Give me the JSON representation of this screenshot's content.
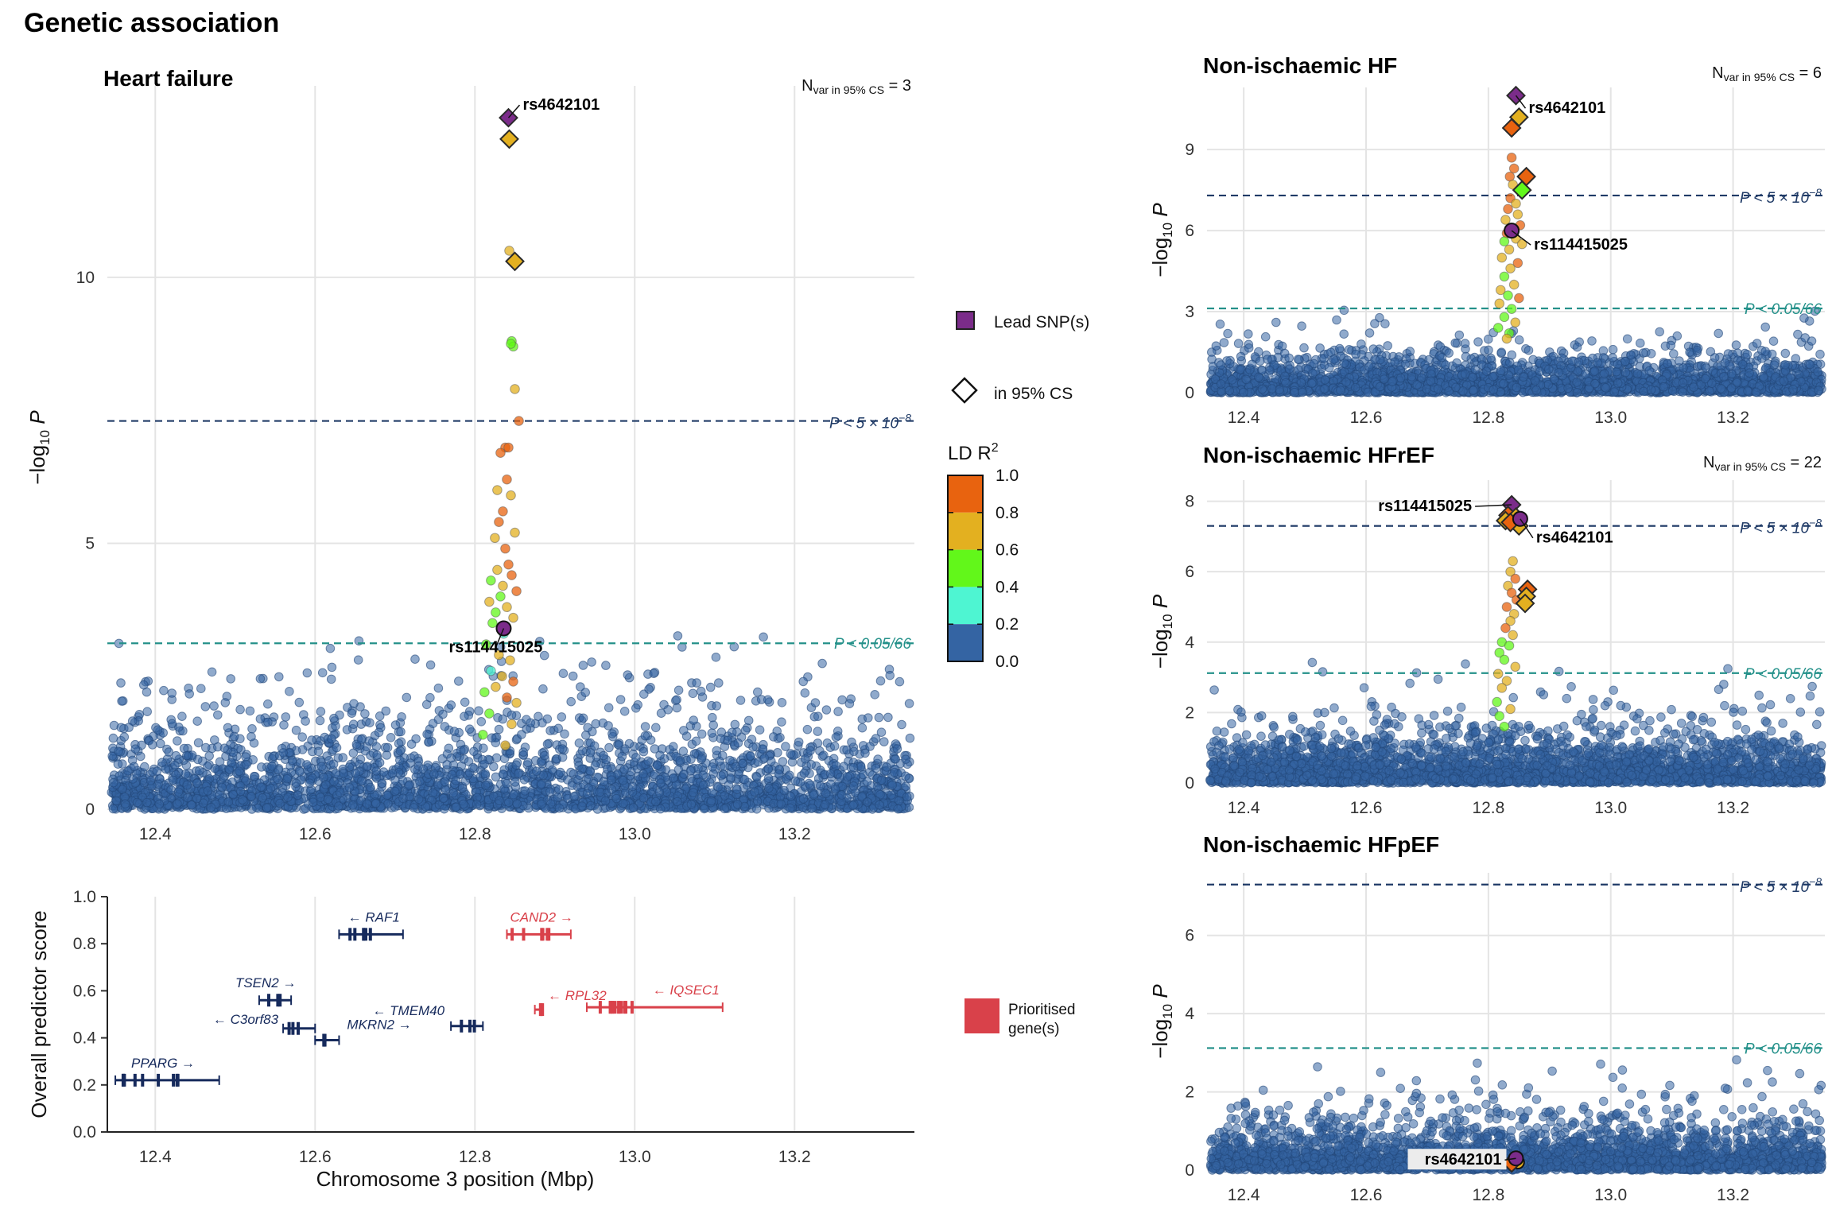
{
  "figure": {
    "title": "Genetic association"
  },
  "colors": {
    "ld_0.0": "#3464a3",
    "ld_0.2": "#4ef5d2",
    "ld_0.4": "#62f71a",
    "ld_0.6": "#e3b020",
    "ld_0.8": "#e8630f",
    "lead": "#7b2c8a",
    "gw_line": "#1f3a66",
    "bonf_line": "#24918a",
    "gene_default": "#162a5c",
    "gene_prioritised": "#d9414a"
  },
  "legend": {
    "lead_label": "Lead SNP(s)",
    "cs_label": "in 95% CS",
    "ld_title": "LD R",
    "ld_title_sup": "2",
    "ld_ticks": [
      "1.0",
      "0.8",
      "0.6",
      "0.4",
      "0.2",
      "0.0"
    ],
    "prioritised_label_1": "Prioritised",
    "prioritised_label_2": "gene(s)"
  },
  "line_labels": {
    "gw": "P < 5 × 10",
    "gw_exp": "−8",
    "bonf": "P < 0.05/66"
  },
  "chart_data": [
    {
      "panel": "Heart failure",
      "type": "scatter",
      "title": "Heart failure",
      "ylabel": "−log10 P",
      "nvar_text": "N",
      "nvar_sub": "var in 95% CS",
      "nvar_value": "= 3",
      "xlim": [
        12.34,
        13.35
      ],
      "ylim": [
        0,
        13.6
      ],
      "xticks": [
        "12.4",
        "12.6",
        "12.8",
        "13.0",
        "13.2"
      ],
      "yticks": [
        "0",
        "5",
        "10"
      ],
      "gw_threshold": 7.3,
      "bonf_threshold": 3.12,
      "highlight_points": [
        {
          "x": 12.842,
          "y": 13.0,
          "shape": "diamond",
          "ld": 1.0,
          "lead": true,
          "label": "rs4642101"
        },
        {
          "x": 12.843,
          "y": 12.6,
          "shape": "diamond",
          "ld": 0.7
        },
        {
          "x": 12.85,
          "y": 10.3,
          "shape": "diamond",
          "ld": 0.7
        },
        {
          "x": 12.836,
          "y": 3.4,
          "shape": "circle",
          "ld": 1.0,
          "lead": true,
          "label": "rs114415025"
        }
      ],
      "signal_points": [
        [
          12.843,
          10.5,
          0.6
        ],
        [
          12.846,
          8.8,
          0.4
        ],
        [
          12.848,
          8.7,
          0.4
        ],
        [
          12.845,
          8.75,
          0.4
        ],
        [
          12.85,
          7.9,
          0.6
        ],
        [
          12.855,
          7.3,
          0.8
        ],
        [
          12.838,
          6.8,
          0.8
        ],
        [
          12.832,
          6.7,
          0.8
        ],
        [
          12.842,
          6.8,
          0.8
        ],
        [
          12.84,
          6.2,
          0.8
        ],
        [
          12.828,
          6.0,
          0.6
        ],
        [
          12.845,
          5.9,
          0.6
        ],
        [
          12.835,
          5.6,
          0.8
        ],
        [
          12.83,
          5.4,
          0.8
        ],
        [
          12.85,
          5.2,
          0.6
        ],
        [
          12.825,
          5.1,
          0.6
        ],
        [
          12.838,
          4.9,
          0.8
        ],
        [
          12.842,
          4.6,
          0.8
        ],
        [
          12.828,
          4.5,
          0.6
        ],
        [
          12.846,
          4.4,
          0.8
        ],
        [
          12.82,
          4.3,
          0.4
        ],
        [
          12.835,
          4.2,
          0.6
        ],
        [
          12.852,
          4.1,
          0.8
        ],
        [
          12.832,
          4.0,
          0.4
        ],
        [
          12.818,
          3.9,
          0.6
        ],
        [
          12.84,
          3.8,
          0.6
        ],
        [
          12.826,
          3.7,
          0.4
        ],
        [
          12.848,
          3.6,
          0.6
        ],
        [
          12.822,
          3.5,
          0.4
        ],
        [
          12.836,
          3.3,
          0.2
        ],
        [
          12.814,
          3.1,
          0.4
        ],
        [
          12.83,
          2.9,
          0.6
        ],
        [
          12.844,
          2.8,
          0.6
        ],
        [
          12.82,
          2.6,
          0.2
        ],
        [
          12.834,
          2.5,
          0.6
        ],
        [
          12.848,
          2.4,
          0.8
        ],
        [
          12.826,
          2.3,
          0.6
        ],
        [
          12.812,
          2.2,
          0.4
        ],
        [
          12.84,
          2.1,
          0.8
        ],
        [
          12.852,
          2.0,
          0.6
        ],
        [
          12.818,
          1.8,
          0.4
        ],
        [
          12.846,
          1.6,
          0.6
        ],
        [
          12.81,
          1.4,
          0.4
        ],
        [
          12.838,
          1.2,
          0.6
        ]
      ]
    },
    {
      "panel": "Non-ischaemic HF",
      "type": "scatter",
      "title": "Non-ischaemic HF",
      "ylabel": "−log10 P",
      "nvar_text": "N",
      "nvar_sub": "var in 95% CS",
      "nvar_value": "= 6",
      "xlim": [
        12.34,
        13.35
      ],
      "ylim": [
        0,
        11.3
      ],
      "xticks": [
        "12.4",
        "12.6",
        "12.8",
        "13.0",
        "13.2"
      ],
      "yticks": [
        "0",
        "3",
        "6",
        "9"
      ],
      "gw_threshold": 7.3,
      "bonf_threshold": 3.12,
      "highlight_points": [
        {
          "x": 12.845,
          "y": 11.0,
          "shape": "diamond",
          "ld": 1.0,
          "lead": true,
          "label": "rs4642101"
        },
        {
          "x": 12.85,
          "y": 10.2,
          "shape": "diamond",
          "ld": 0.7
        },
        {
          "x": 12.838,
          "y": 9.8,
          "shape": "diamond",
          "ld": 0.8
        },
        {
          "x": 12.862,
          "y": 8.0,
          "shape": "diamond",
          "ld": 0.85
        },
        {
          "x": 12.855,
          "y": 7.5,
          "shape": "diamond",
          "ld": 0.4
        },
        {
          "x": 12.838,
          "y": 6.0,
          "shape": "circle",
          "ld": 1.0,
          "lead": true,
          "label": "rs114415025"
        }
      ],
      "signal_points": [
        [
          12.838,
          8.7,
          0.8
        ],
        [
          12.842,
          8.3,
          0.8
        ],
        [
          12.835,
          8.0,
          0.8
        ],
        [
          12.84,
          7.7,
          0.6
        ],
        [
          12.836,
          7.2,
          0.8
        ],
        [
          12.845,
          7.0,
          0.6
        ],
        [
          12.832,
          6.8,
          0.8
        ],
        [
          12.848,
          6.6,
          0.6
        ],
        [
          12.828,
          6.4,
          0.6
        ],
        [
          12.852,
          6.2,
          0.8
        ],
        [
          12.83,
          5.9,
          0.8
        ],
        [
          12.845,
          5.7,
          0.6
        ],
        [
          12.826,
          5.6,
          0.4
        ],
        [
          12.855,
          5.5,
          0.6
        ],
        [
          12.834,
          5.3,
          0.6
        ],
        [
          12.822,
          5.0,
          0.6
        ],
        [
          12.848,
          4.8,
          0.8
        ],
        [
          12.836,
          4.6,
          0.6
        ],
        [
          12.826,
          4.3,
          0.4
        ],
        [
          12.842,
          4.0,
          0.6
        ],
        [
          12.82,
          3.8,
          0.6
        ],
        [
          12.832,
          3.6,
          0.4
        ],
        [
          12.85,
          3.5,
          0.8
        ],
        [
          12.818,
          3.3,
          0.6
        ],
        [
          12.838,
          3.1,
          0.4
        ],
        [
          12.826,
          2.8,
          0.4
        ],
        [
          12.844,
          2.6,
          0.6
        ],
        [
          12.816,
          2.4,
          0.4
        ],
        [
          12.834,
          2.2,
          0.4
        ],
        [
          12.83,
          2.0,
          0.6
        ]
      ]
    },
    {
      "panel": "Non-ischaemic HFrEF",
      "type": "scatter",
      "title": "Non-ischaemic HFrEF",
      "ylabel": "−log10 P",
      "nvar_text": "N",
      "nvar_sub": "var in 95% CS",
      "nvar_value": "= 22",
      "xlim": [
        12.34,
        13.35
      ],
      "ylim": [
        0,
        8.6
      ],
      "xticks": [
        "12.4",
        "12.6",
        "12.8",
        "13.0",
        "13.2"
      ],
      "yticks": [
        "0",
        "2",
        "4",
        "6",
        "8"
      ],
      "gw_threshold": 7.3,
      "bonf_threshold": 3.12,
      "highlight_points": [
        {
          "x": 12.838,
          "y": 7.9,
          "shape": "diamond",
          "ld": 1.0,
          "lead": true,
          "label": "rs114415025"
        },
        {
          "x": 12.832,
          "y": 7.6,
          "shape": "diamond",
          "ld": 0.8
        },
        {
          "x": 12.845,
          "y": 7.55,
          "shape": "diamond",
          "ld": 0.7
        },
        {
          "x": 12.828,
          "y": 7.45,
          "shape": "diamond",
          "ld": 0.7
        },
        {
          "x": 12.85,
          "y": 7.3,
          "shape": "diamond",
          "ld": 0.6
        },
        {
          "x": 12.836,
          "y": 7.4,
          "shape": "diamond",
          "ld": 0.8
        },
        {
          "x": 12.864,
          "y": 5.5,
          "shape": "diamond",
          "ld": 0.85
        },
        {
          "x": 12.862,
          "y": 5.3,
          "shape": "diamond",
          "ld": 0.7
        },
        {
          "x": 12.86,
          "y": 5.1,
          "shape": "diamond",
          "ld": 0.6
        },
        {
          "x": 12.852,
          "y": 7.5,
          "shape": "circle",
          "ld": 1.0,
          "lead": true,
          "label": "rs4642101"
        }
      ],
      "signal_points": [
        [
          12.84,
          6.3,
          0.6
        ],
        [
          12.836,
          6.0,
          0.6
        ],
        [
          12.844,
          5.8,
          0.8
        ],
        [
          12.832,
          5.6,
          0.6
        ],
        [
          12.838,
          5.4,
          0.8
        ],
        [
          12.846,
          5.2,
          0.8
        ],
        [
          12.83,
          5.0,
          0.8
        ],
        [
          12.842,
          4.8,
          0.6
        ],
        [
          12.836,
          4.6,
          0.6
        ],
        [
          12.828,
          4.4,
          0.8
        ],
        [
          12.84,
          4.2,
          0.6
        ],
        [
          12.822,
          4.0,
          0.4
        ],
        [
          12.834,
          3.9,
          0.4
        ],
        [
          12.818,
          3.7,
          0.4
        ],
        [
          12.826,
          3.5,
          0.4
        ],
        [
          12.844,
          3.3,
          0.6
        ],
        [
          12.816,
          3.1,
          0.6
        ],
        [
          12.83,
          2.9,
          0.6
        ],
        [
          12.822,
          2.7,
          0.6
        ],
        [
          12.814,
          2.3,
          0.4
        ],
        [
          12.836,
          2.1,
          0.6
        ],
        [
          12.818,
          1.9,
          0.4
        ],
        [
          12.826,
          1.6,
          0.4
        ]
      ]
    },
    {
      "panel": "Non-ischaemic HFpEF",
      "type": "scatter",
      "title": "Non-ischaemic HFpEF",
      "ylabel": "−log10 P",
      "xlim": [
        12.34,
        13.35
      ],
      "ylim": [
        0,
        7.6
      ],
      "xticks": [
        "12.4",
        "12.6",
        "12.8",
        "13.0",
        "13.2"
      ],
      "yticks": [
        "0",
        "2",
        "4",
        "6"
      ],
      "gw_threshold": 7.3,
      "bonf_threshold": 3.12,
      "highlight_points": [
        {
          "x": 12.842,
          "y": 0.25,
          "shape": "circle",
          "ld": 0.8
        },
        {
          "x": 12.848,
          "y": 0.2,
          "shape": "circle",
          "ld": 0.6
        },
        {
          "x": 12.838,
          "y": 0.18,
          "shape": "diamond",
          "ld": 0.8
        },
        {
          "x": 12.845,
          "y": 0.3,
          "shape": "circle",
          "ld": 1.0,
          "lead": true,
          "label": "rs4642101"
        }
      ],
      "signal_points": []
    },
    {
      "panel": "Gene prioritisation",
      "type": "scatter",
      "xlabel": "Chromosome 3 position (Mbp)",
      "ylabel": "Overall predictor score",
      "xlim": [
        12.34,
        13.35
      ],
      "ylim": [
        0,
        1.0
      ],
      "xticks": [
        "12.4",
        "12.6",
        "12.8",
        "13.0",
        "13.2"
      ],
      "yticks": [
        "0.0",
        "0.2",
        "0.4",
        "0.6",
        "0.8",
        "1.0"
      ],
      "genes": [
        {
          "name": "PPARG",
          "start": 12.35,
          "end": 12.48,
          "score": 0.22,
          "strand": "+",
          "prioritised": false,
          "label": "PPARG →"
        },
        {
          "name": "TSEN2",
          "start": 12.53,
          "end": 12.57,
          "score": 0.56,
          "strand": "+",
          "prioritised": false,
          "label": "TSEN2 →"
        },
        {
          "name": "C3orf83",
          "start": 12.56,
          "end": 12.6,
          "score": 0.44,
          "strand": "-",
          "prioritised": false,
          "label": "← C3orf83"
        },
        {
          "name": "MKRN2",
          "start": 12.6,
          "end": 12.63,
          "score": 0.39,
          "strand": "+",
          "prioritised": false,
          "label": "MKRN2 →"
        },
        {
          "name": "RAF1",
          "start": 12.63,
          "end": 12.71,
          "score": 0.84,
          "strand": "-",
          "prioritised": false,
          "label": "← RAF1"
        },
        {
          "name": "TMEM40",
          "start": 12.77,
          "end": 12.81,
          "score": 0.45,
          "strand": "-",
          "prioritised": false,
          "label": "← TMEM40"
        },
        {
          "name": "CAND2",
          "start": 12.84,
          "end": 12.92,
          "score": 0.84,
          "strand": "+",
          "prioritised": true,
          "label": "CAND2 →"
        },
        {
          "name": "RPL32",
          "start": 12.875,
          "end": 12.885,
          "score": 0.52,
          "strand": "-",
          "prioritised": true,
          "label": "← RPL32"
        },
        {
          "name": "IQSEC1",
          "start": 12.94,
          "end": 13.11,
          "score": 0.53,
          "strand": "-",
          "prioritised": true,
          "label": "← IQSEC1"
        }
      ]
    }
  ]
}
